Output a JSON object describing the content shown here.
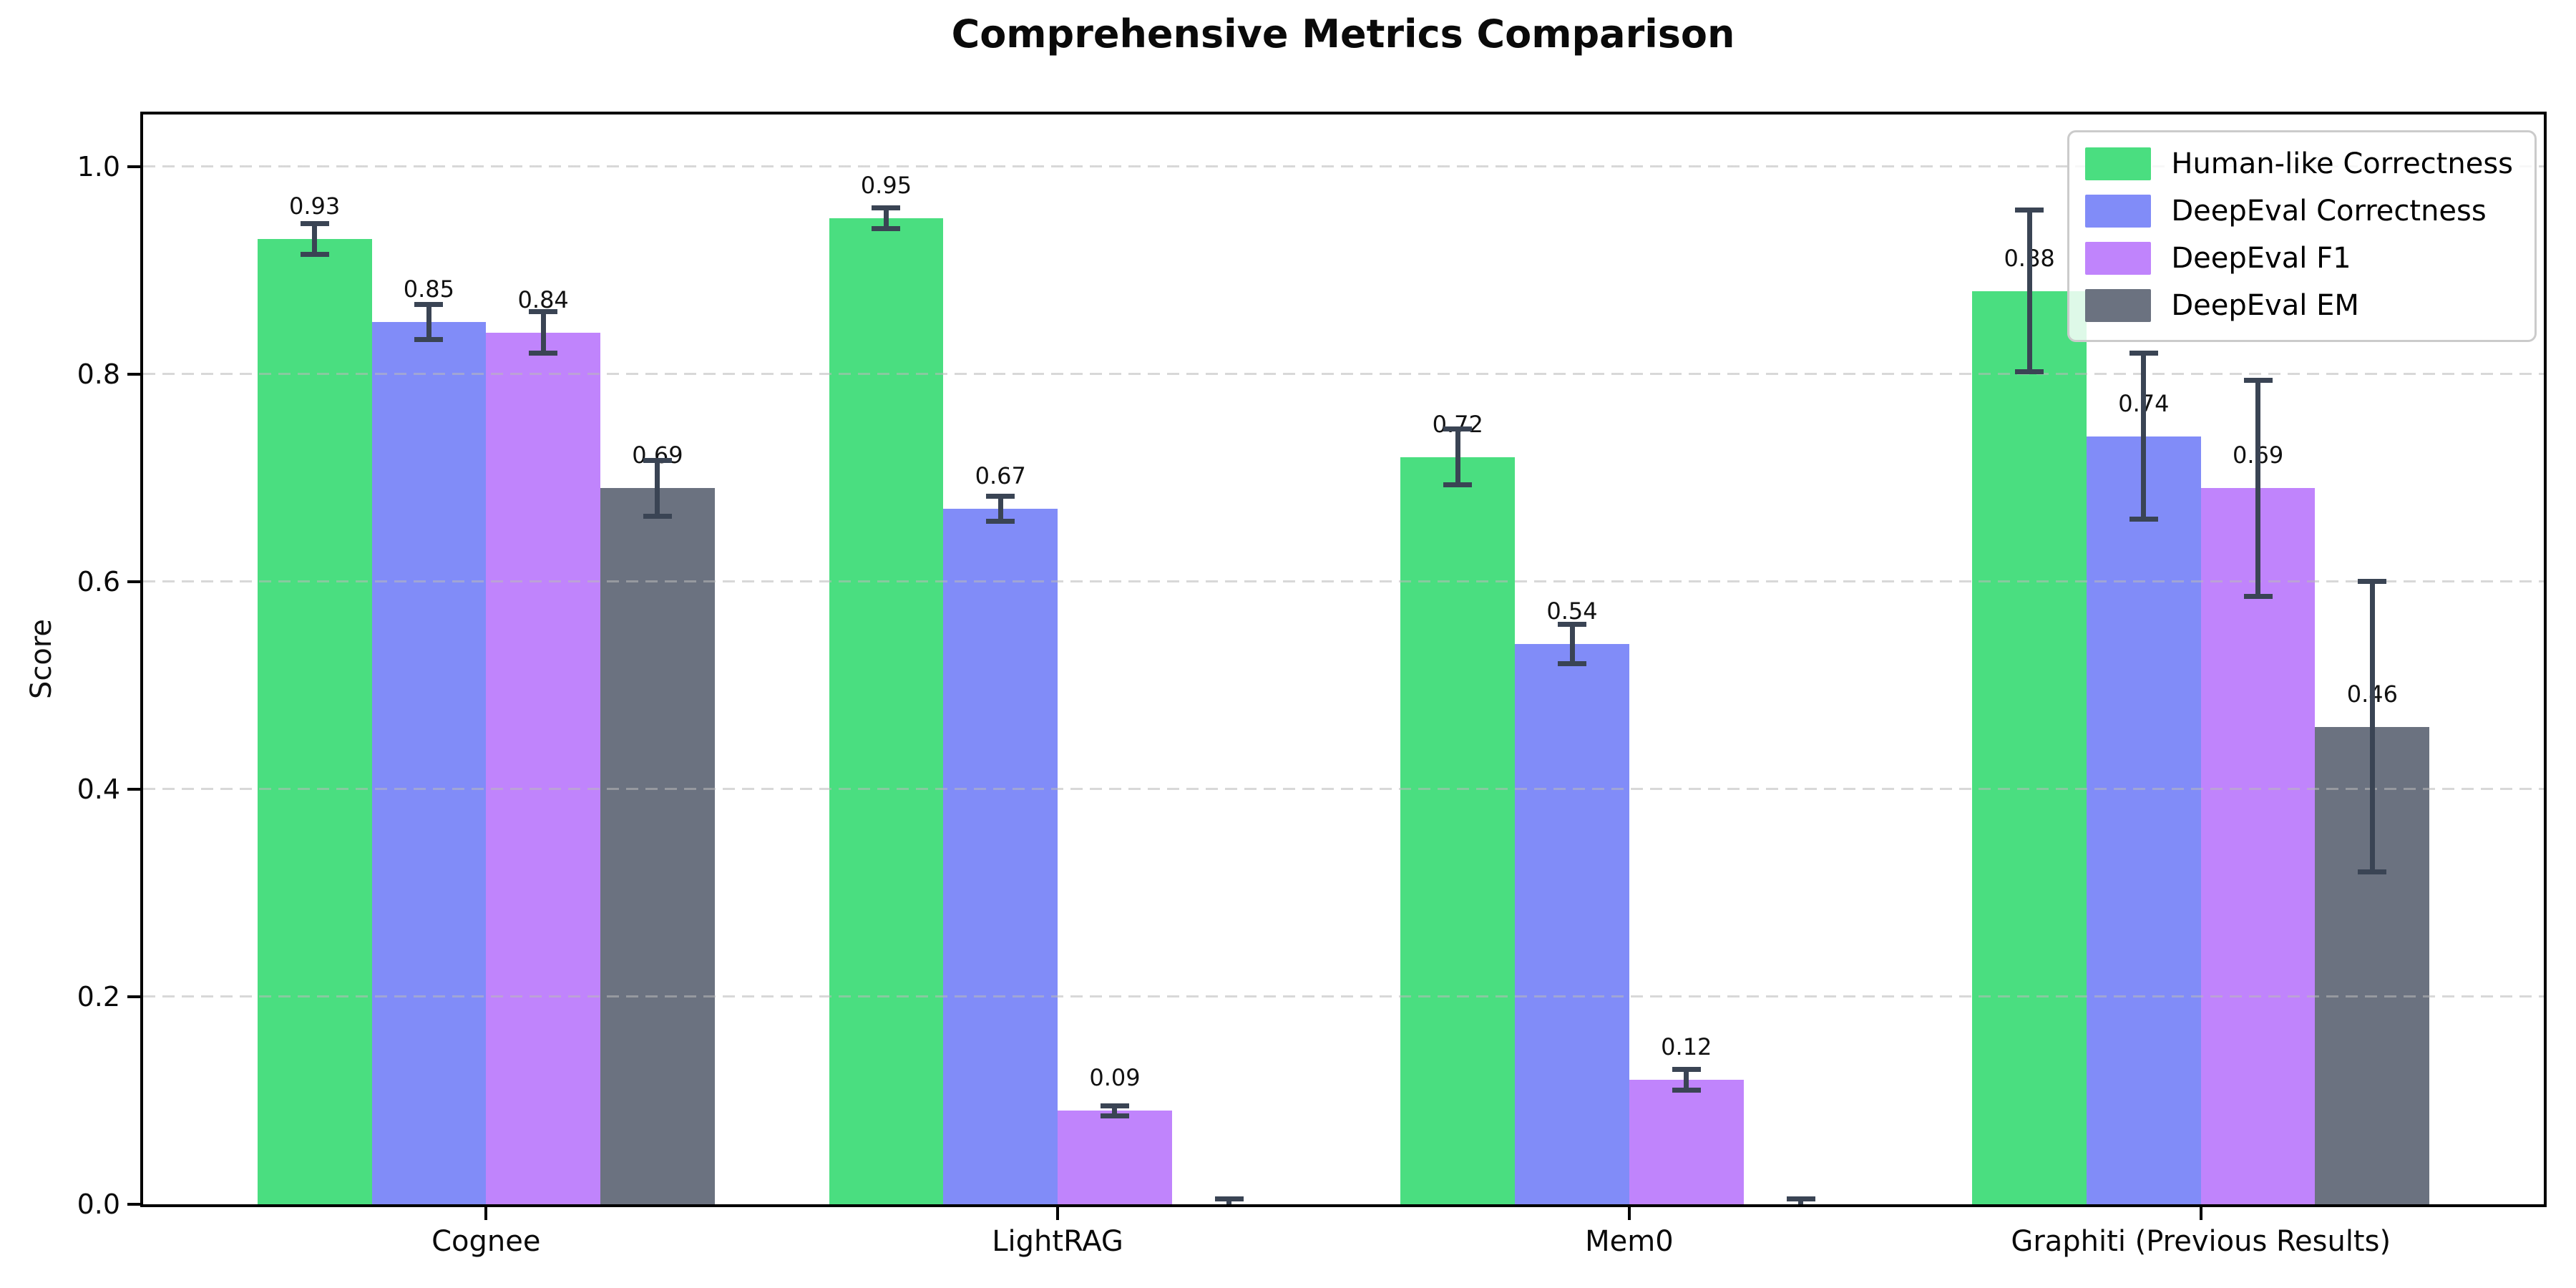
{
  "figure": {
    "background": "#ffffff",
    "error_bar_color": "#3a4454",
    "grid_color": "#bdbdbd"
  },
  "chart_data": {
    "type": "bar",
    "title": "Comprehensive Metrics Comparison",
    "xlabel": "",
    "ylabel": "Score",
    "categories": [
      "Cognee",
      "LightRAG",
      "Mem0",
      "Graphiti (Previous Results)"
    ],
    "yticks": [
      "0.0",
      "0.2",
      "0.4",
      "0.6",
      "0.8",
      "1.0"
    ],
    "ytick_values": [
      0.0,
      0.2,
      0.4,
      0.6,
      0.8,
      1.0
    ],
    "ylim": [
      0,
      1.05
    ],
    "grid": "horizontal-dashed",
    "legend_position": "upper-right",
    "series": [
      {
        "name": "Human-like Correctness",
        "color": "#4ade80",
        "values": [
          0.93,
          0.95,
          0.72,
          0.88
        ],
        "errors": [
          0.015,
          0.01,
          0.027,
          0.078
        ],
        "bar_labels": [
          "0.93",
          "0.95",
          "0.72",
          "0.88"
        ]
      },
      {
        "name": "DeepEval Correctness",
        "color": "#818cf8",
        "values": [
          0.85,
          0.67,
          0.54,
          0.74
        ],
        "errors": [
          0.017,
          0.012,
          0.019,
          0.08
        ],
        "bar_labels": [
          "0.85",
          "0.67",
          "0.54",
          "0.74"
        ]
      },
      {
        "name": "DeepEval F1",
        "color": "#c084fc",
        "values": [
          0.84,
          0.09,
          0.12,
          0.69
        ],
        "errors": [
          0.02,
          0.005,
          0.01,
          0.104
        ],
        "bar_labels": [
          "0.84",
          "0.09",
          "0.12",
          "0.69"
        ]
      },
      {
        "name": "DeepEval EM",
        "color": "#6b7280",
        "values": [
          0.69,
          0.0,
          0.0,
          0.46
        ],
        "errors": [
          0.027,
          0.005,
          0.005,
          0.14
        ],
        "bar_labels": [
          "0.69",
          null,
          null,
          "0.46"
        ]
      }
    ]
  }
}
